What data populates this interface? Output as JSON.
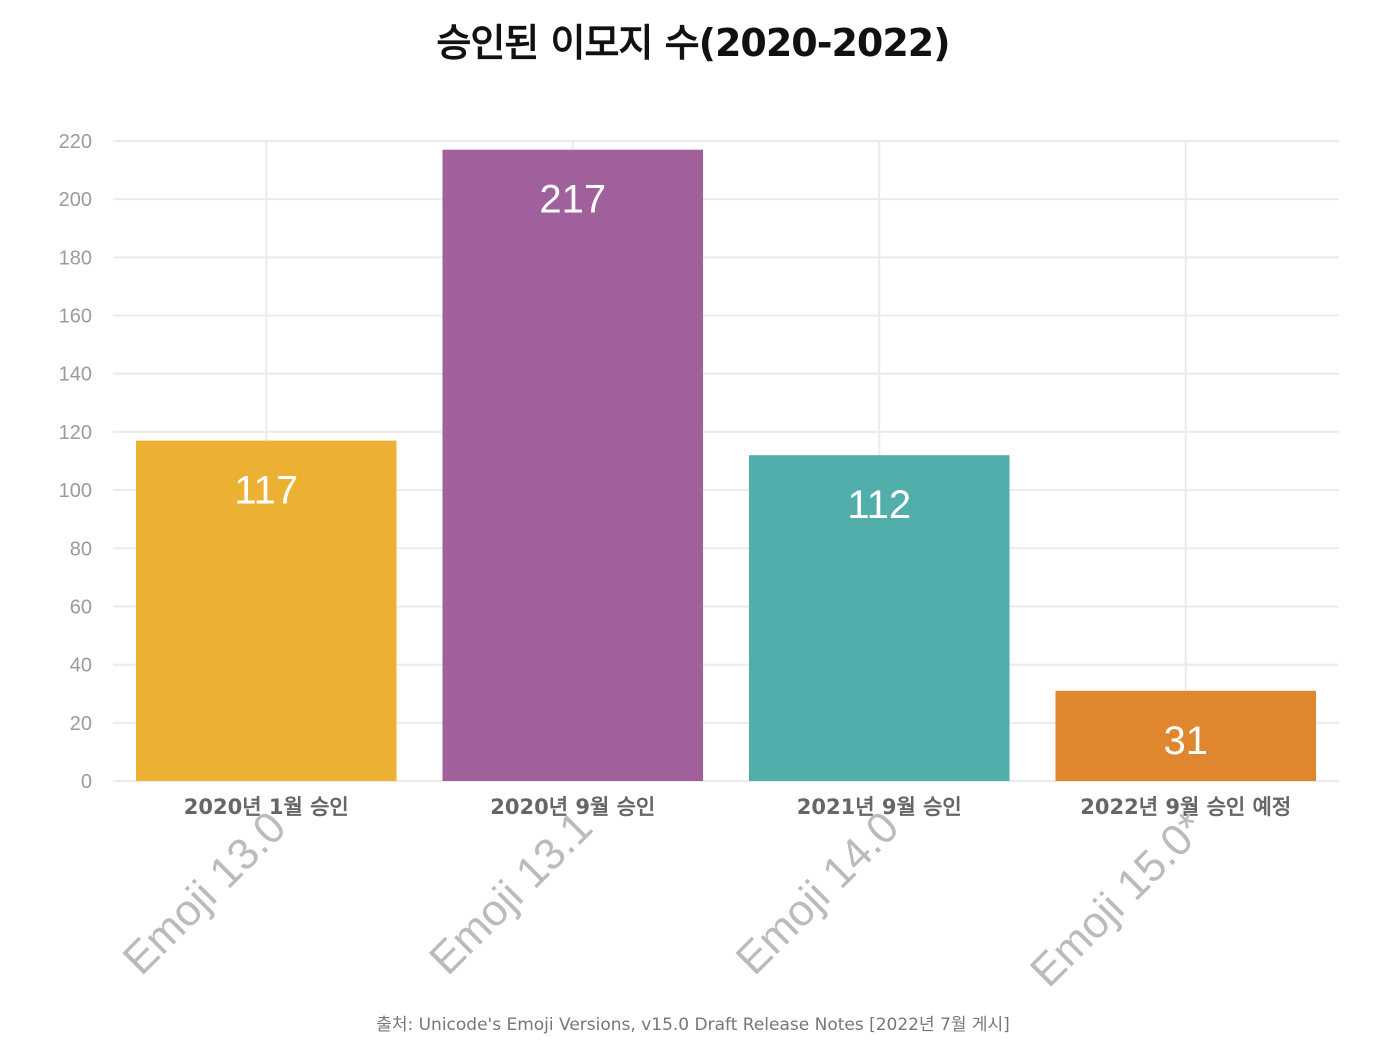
{
  "chart_data": {
    "type": "bar",
    "title": "승인된 이모지 수(2020-2022)",
    "categories": [
      "2020년 1월 승인",
      "2020년 9월 승인",
      "2021년 9월 승인",
      "2022년 9월 승인 예정"
    ],
    "versions": [
      "Emoji 13.0",
      "Emoji 13.1",
      "Emoji 14.0",
      "Emoji 15.0*"
    ],
    "values": [
      117,
      217,
      112,
      31
    ],
    "value_labels": [
      "117",
      "217",
      "112",
      "31"
    ],
    "colors": [
      "#ecb133",
      "#a0609c",
      "#51aeab",
      "#e0862e"
    ],
    "ylim": [
      0,
      220
    ],
    "yticks": [
      0,
      20,
      40,
      60,
      80,
      100,
      120,
      140,
      160,
      180,
      200,
      220
    ],
    "ytick_labels": [
      "0",
      "20",
      "40",
      "60",
      "80",
      "100",
      "120",
      "140",
      "160",
      "180",
      "200",
      "220"
    ],
    "grid": true,
    "xlabel": "",
    "ylabel": "",
    "source": "출처: Unicode's Emoji Versions, v15.0 Draft Release Notes [2022년 7월 게시]"
  }
}
